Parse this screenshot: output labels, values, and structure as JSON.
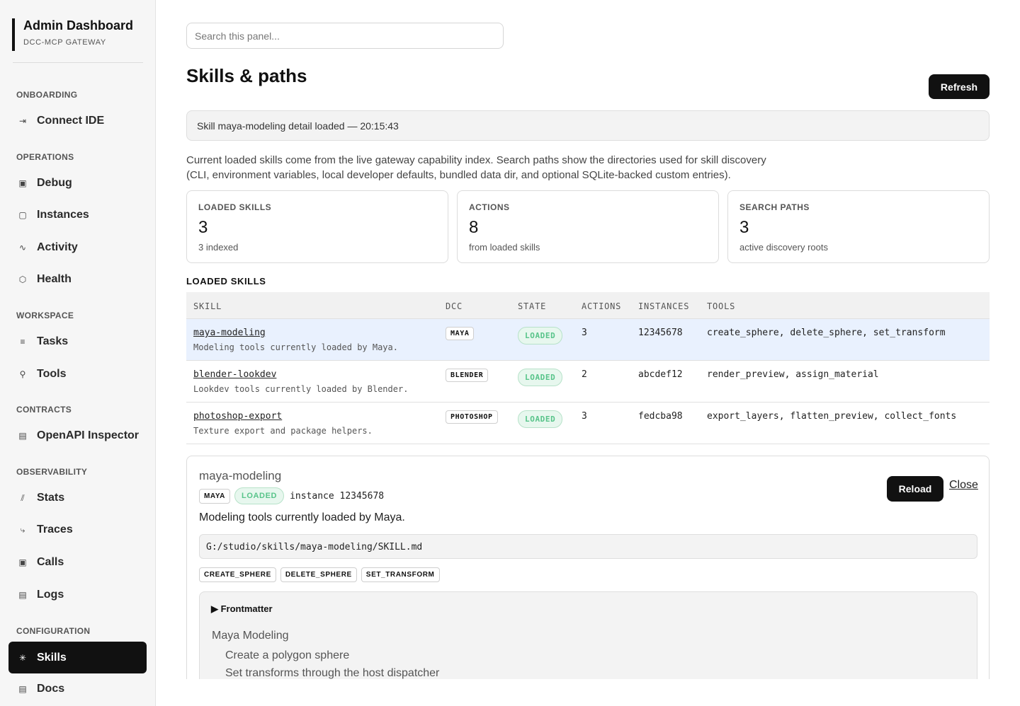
{
  "sidebar": {
    "title": "Admin Dashboard",
    "subtitle": "DCC-MCP GATEWAY",
    "sections": {
      "onboarding": "ONBOARDING",
      "operations": "OPERATIONS",
      "workspace": "WORKSPACE",
      "contracts": "CONTRACTS",
      "observability": "OBSERVABILITY",
      "configuration": "CONFIGURATION"
    },
    "items": {
      "connect_ide": {
        "label": "Connect IDE",
        "icon": "⇥"
      },
      "debug": {
        "label": "Debug",
        "icon": "▣"
      },
      "instances": {
        "label": "Instances",
        "icon": "▢"
      },
      "activity": {
        "label": "Activity",
        "icon": "∿"
      },
      "health": {
        "label": "Health",
        "icon": "⬡"
      },
      "tasks": {
        "label": "Tasks",
        "icon": "≡"
      },
      "tools": {
        "label": "Tools",
        "icon": "⚲"
      },
      "openapi": {
        "label": "OpenAPI Inspector",
        "icon": "▤"
      },
      "stats": {
        "label": "Stats",
        "icon": "⫽"
      },
      "traces": {
        "label": "Traces",
        "icon": "⤷"
      },
      "calls": {
        "label": "Calls",
        "icon": "▣"
      },
      "logs": {
        "label": "Logs",
        "icon": "▤"
      },
      "skills": {
        "label": "Skills",
        "icon": "✳"
      },
      "docs": {
        "label": "Docs",
        "icon": "▤"
      }
    }
  },
  "search": {
    "placeholder": "Search this panel..."
  },
  "page": {
    "title": "Skills & paths",
    "refresh_label": "Refresh",
    "status": "Skill maya-modeling detail loaded — 20:15:43",
    "description_line1": "Current loaded skills come from the live gateway capability index. Search paths show the directories used for skill discovery",
    "description_line2": "(CLI, environment variables, local developer defaults, bundled data dir, and optional SQLite-backed custom entries)."
  },
  "cards": [
    {
      "label": "LOADED SKILLS",
      "value": "3",
      "note": "3 indexed"
    },
    {
      "label": "ACTIONS",
      "value": "8",
      "note": "from loaded skills"
    },
    {
      "label": "SEARCH PATHS",
      "value": "3",
      "note": "active discovery roots"
    }
  ],
  "table": {
    "heading": "LOADED SKILLS",
    "columns": [
      "SKILL",
      "DCC",
      "STATE",
      "ACTIONS",
      "INSTANCES",
      "TOOLS"
    ],
    "rows": [
      {
        "skill": "maya-modeling",
        "desc": "Modeling tools currently loaded by Maya.",
        "dcc": "MAYA",
        "state": "LOADED",
        "actions": "3",
        "instance": "12345678",
        "tools": "create_sphere, delete_sphere, set_transform"
      },
      {
        "skill": "blender-lookdev",
        "desc": "Lookdev tools currently loaded by Blender.",
        "dcc": "BLENDER",
        "state": "LOADED",
        "actions": "2",
        "instance": "abcdef12",
        "tools": "render_preview, assign_material"
      },
      {
        "skill": "photoshop-export",
        "desc": "Texture export and package helpers.",
        "dcc": "PHOTOSHOP",
        "state": "LOADED",
        "actions": "3",
        "instance": "fedcba98",
        "tools": "export_layers, flatten_preview, collect_fonts"
      }
    ]
  },
  "detail": {
    "name": "maya-modeling",
    "dcc": "MAYA",
    "state": "LOADED",
    "instance": "instance 12345678",
    "reload_label": "Reload",
    "close_label": "Close",
    "description": "Modeling tools currently loaded by Maya.",
    "path": "G:/studio/skills/maya-modeling/SKILL.md",
    "tools": [
      "CREATE_SPHERE",
      "DELETE_SPHERE",
      "SET_TRANSFORM"
    ],
    "frontmatter_label": "▶ Frontmatter",
    "frontmatter_title": "Maya Modeling",
    "frontmatter_lines": [
      "Create a polygon sphere",
      "Set transforms through the host dispatcher"
    ]
  }
}
